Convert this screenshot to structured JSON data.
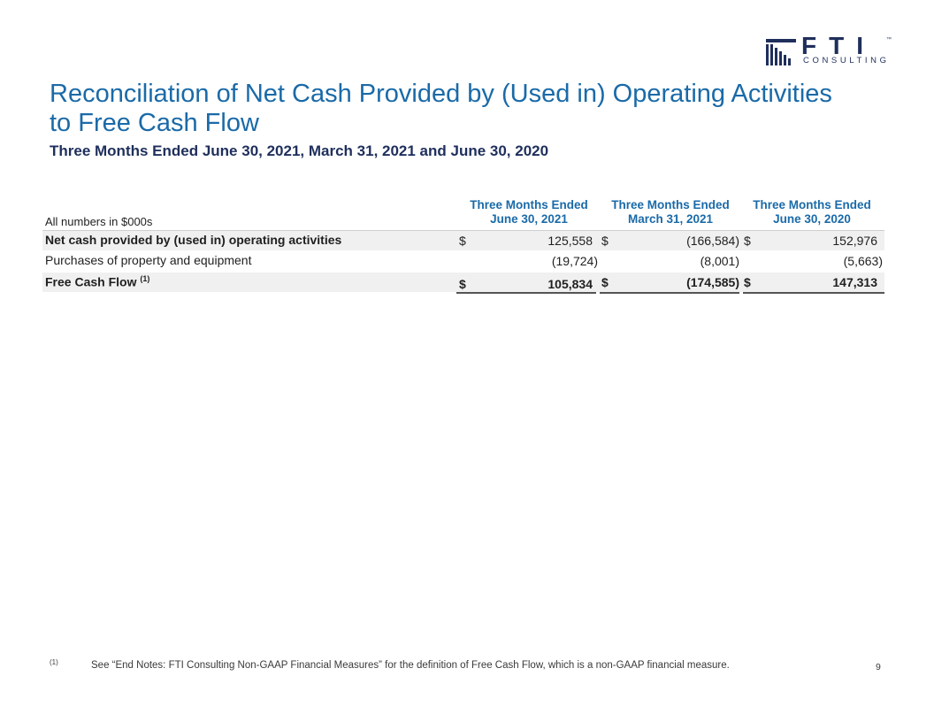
{
  "logo": {
    "name": "FTI",
    "sub": "CONSULTING",
    "tm": "™"
  },
  "title": "Reconciliation of Net Cash Provided by (Used in) Operating Activities to Free Cash Flow",
  "subtitle": "Three Months Ended June 30, 2021, March 31, 2021 and June 30, 2020",
  "table": {
    "units_label": "All numbers in $000s",
    "columns": [
      {
        "line1": "Three Months Ended",
        "line2": "June 30, 2021"
      },
      {
        "line1": "Three Months Ended",
        "line2": "March 31, 2021"
      },
      {
        "line1": "Three Months Ended",
        "line2": "June 30, 2020"
      }
    ],
    "rows": [
      {
        "label": "Net cash provided by (used in) operating activities",
        "cur": [
          "$",
          "$",
          "$"
        ],
        "values": [
          "125,558",
          "(166,584)",
          "152,976"
        ]
      },
      {
        "label": "Purchases of property and equipment",
        "cur": [
          "",
          "",
          ""
        ],
        "values": [
          "(19,724)",
          "(8,001)",
          "(5,663)"
        ]
      },
      {
        "label": "Free Cash Flow",
        "sup": "(1)",
        "cur": [
          "$",
          "$",
          "$"
        ],
        "values": [
          "105,834",
          "(174,585)",
          "147,313"
        ]
      }
    ]
  },
  "footnote": {
    "mark": "(1)",
    "text": "See “End Notes: FTI Consulting Non-GAAP Financial Measures” for the definition of Free Cash Flow, which is a non-GAAP financial measure."
  },
  "page_number": "9",
  "colors": {
    "title": "#1a6aa8",
    "subtitle": "#1f2f5c",
    "logo": "#1f2f5c"
  }
}
